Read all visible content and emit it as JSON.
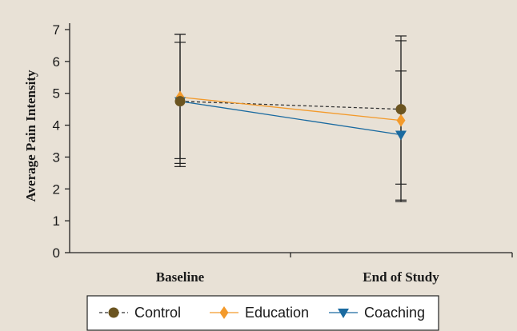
{
  "chart_data": {
    "type": "line",
    "title": "",
    "xlabel": "",
    "ylabel": "Average Pain Intensity",
    "ylim": [
      0,
      7
    ],
    "yticks": [
      0,
      1,
      2,
      3,
      4,
      5,
      6,
      7
    ],
    "categories": [
      "Baseline",
      "End of Study"
    ],
    "grid": false,
    "legend_position": "bottom",
    "series": [
      {
        "name": "Control",
        "color": "#6b5420",
        "marker": "circle",
        "line_style": "dashed",
        "values": [
          4.75,
          4.5
        ],
        "error_low": [
          2.7,
          1.6
        ],
        "error_high": [
          6.85,
          6.8
        ]
      },
      {
        "name": "Education",
        "color": "#f39a2b",
        "marker": "diamond",
        "line_style": "solid",
        "values": [
          4.88,
          4.15
        ],
        "error_low": [
          2.95,
          2.15
        ],
        "error_high": [
          6.6,
          5.7
        ]
      },
      {
        "name": "Coaching",
        "color": "#1a6aa0",
        "marker": "triangle-down",
        "line_style": "solid",
        "values": [
          4.75,
          3.7
        ],
        "error_low": [
          2.8,
          1.65
        ],
        "error_high": [
          6.85,
          6.65
        ]
      }
    ]
  }
}
